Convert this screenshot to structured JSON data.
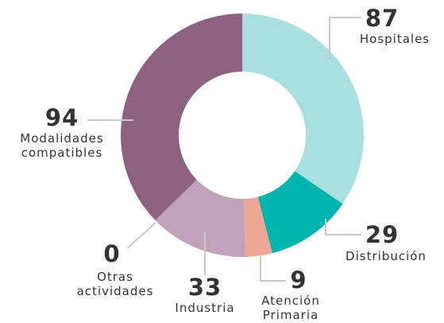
{
  "chart_data": {
    "type": "pie",
    "categories": [
      "Hospitales",
      "Distribución",
      "Atención Primaria",
      "Industria",
      "Otras actividades",
      "Modalidades compatibles"
    ],
    "values": [
      87,
      29,
      9,
      33,
      0,
      94
    ],
    "colors": [
      "#a9dfdf",
      "#00b5ad",
      "#f0a696",
      "#c0a3b9",
      "#b8b8b8",
      "#8d6281"
    ]
  }
}
